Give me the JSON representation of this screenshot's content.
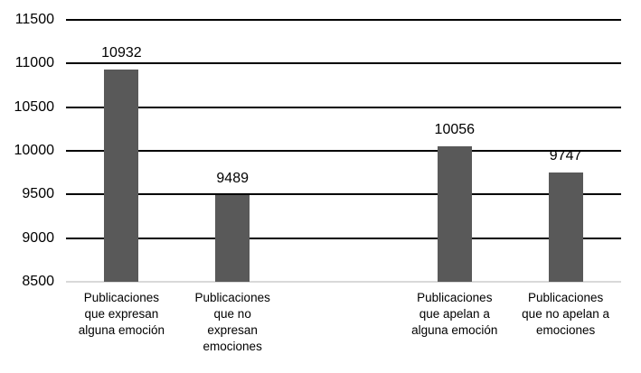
{
  "chart_data": {
    "type": "bar",
    "title": "",
    "xlabel": "",
    "ylabel": "",
    "categories": [
      "Publicaciones\nque expresan\nalguna emoción",
      "Publicaciones\nque no\nexpresan\nemociones",
      "Publicaciones\nque apelan a\nalguna emoción",
      "Publicaciones\nque no apelan a\nemociones"
    ],
    "values": [
      10932,
      9489,
      10056,
      9747
    ],
    "value_labels": [
      "10932",
      "9489",
      "10056",
      "9747"
    ],
    "ylim": [
      8500,
      11500
    ],
    "ytick_step": 500,
    "ytick_labels": [
      "11500",
      "11000",
      "10500",
      "10000",
      "9500",
      "9000",
      "8500"
    ],
    "grid": true,
    "legend": "none",
    "layout": {
      "total_slots": 5,
      "bar_slots": [
        0,
        1,
        3,
        4
      ],
      "note_empty_slot": 2
    },
    "colors": {
      "bar": "#595959",
      "gridline": "#000000",
      "baseline": "#d9d9d9",
      "text": "#000000",
      "background": "#ffffff"
    }
  }
}
